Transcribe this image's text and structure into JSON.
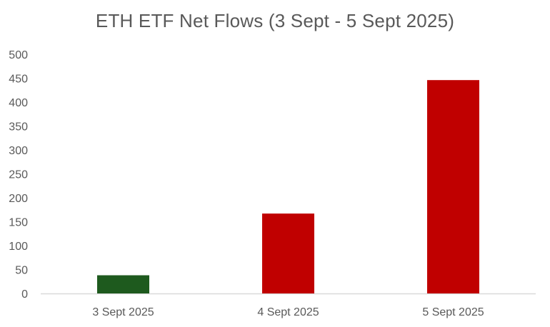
{
  "chart_data": {
    "type": "bar",
    "title": "ETH ETF Net Flows (3 Sept - 5 Sept 2025)",
    "xlabel": "",
    "ylabel": "",
    "categories": [
      "3 Sept 2025",
      "4 Sept 2025",
      "5 Sept 2025"
    ],
    "values": [
      38,
      167,
      446
    ],
    "bar_colors": [
      "#1e5a1e",
      "#c00000",
      "#c00000"
    ],
    "ylim": [
      0,
      500
    ],
    "yticks": [
      0,
      50,
      100,
      150,
      200,
      250,
      300,
      350,
      400,
      450,
      500
    ],
    "grid": false,
    "legend": "none"
  },
  "colors": {
    "text": "#595959",
    "axis": "#d9d9d9",
    "inflow": "#1e5a1e",
    "outflow": "#c00000"
  }
}
